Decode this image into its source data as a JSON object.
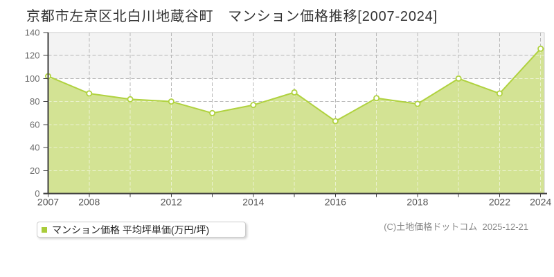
{
  "title": "京都市左京区北白川地蔵谷町　マンション価格推移[2007-2024]",
  "legend": {
    "label": "マンション価格 平均坪単価(万円/坪)",
    "marker_color": "#a9cc3a"
  },
  "copyright": "(C)土地価格ドットコム  2025-12-21",
  "colors": {
    "area_fill": "#d3e394",
    "line": "#b0d23f",
    "marker_fill": "#ffffff",
    "grid": "#b8b8b8",
    "grid_on_fill": "rgba(255,255,255,0.55)",
    "band": "#f3f3f3",
    "axis": "#3f3f3f",
    "frame": "#cccccc",
    "y_label": "#6e6e6e",
    "x_label": "#555555"
  },
  "chart_data": {
    "type": "area",
    "title": "京都市左京区北白川地蔵谷町 マンション価格推移[2007-2024]",
    "series_name": "マンション価格 平均坪単価(万円/坪)",
    "categories": [
      "2007",
      "2008",
      "",
      "2012",
      "",
      "2014",
      "",
      "2016",
      "",
      "2018",
      "",
      "2022",
      "2024"
    ],
    "values": [
      102,
      87,
      82,
      80,
      70,
      77,
      88,
      63,
      83,
      78,
      100,
      87,
      126
    ],
    "xlabel": "",
    "ylabel": "万円/坪",
    "ylim": [
      0,
      140
    ],
    "yticks": [
      0,
      20,
      40,
      60,
      80,
      100,
      120,
      140
    ],
    "grid": "dashed",
    "legend_position": "bottom-left",
    "band_above_value": 100
  }
}
